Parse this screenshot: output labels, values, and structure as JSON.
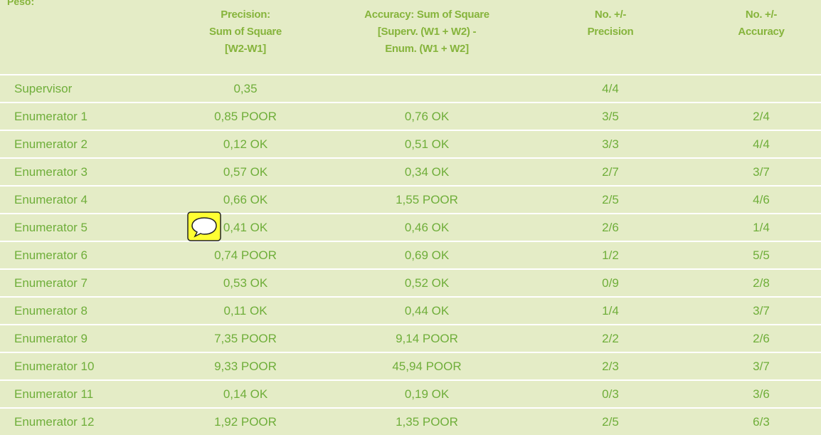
{
  "title": "Peso:",
  "table": {
    "header": [
      [
        "Precision:",
        "Sum of Square",
        "[W2-W1]"
      ],
      [
        "Accuracy:  Sum of Square",
        "[Superv. (W1 + W2) -",
        "Enum. (W1 + W2]"
      ],
      [
        "No. +/-",
        "Precision"
      ],
      [
        "No. +/-",
        "Accuracy"
      ]
    ],
    "rows": [
      [
        "Supervisor",
        "0,35",
        null,
        "4/4",
        null
      ],
      [
        "Enumerator 1",
        "0,85 POOR",
        "0,76 OK",
        "3/5",
        "2/4"
      ],
      [
        "Enumerator 2",
        "0,12 OK",
        "0,51 OK",
        "3/3",
        "4/4"
      ],
      [
        "Enumerator 3",
        "0,57 OK",
        "0,34 OK",
        "2/7",
        "3/7"
      ],
      [
        "Enumerator 4",
        "0,66 OK",
        "1,55 POOR",
        "2/5",
        "4/6"
      ],
      [
        "Enumerator 5",
        "0,41 OK",
        "0,46 OK",
        "2/6",
        "1/4"
      ],
      [
        "Enumerator 6",
        "0,74 POOR",
        "0,69 OK",
        "1/2",
        "5/5"
      ],
      [
        "Enumerator 7",
        "0,53 OK",
        "0,52 OK",
        "0/9",
        "2/8"
      ],
      [
        "Enumerator 8",
        "0,11 OK",
        "0,44 OK",
        "1/4",
        "3/7"
      ],
      [
        "Enumerator 9",
        "7,35 POOR",
        "9,14 POOR",
        "2/2",
        "2/6"
      ],
      [
        "Enumerator 10",
        "9,33 POOR",
        "45,94 POOR",
        "2/3",
        "3/7"
      ],
      [
        "Enumerator 11",
        "0,14 OK",
        "0,19 OK",
        "0/3",
        "3/6"
      ],
      [
        "Enumerator 12",
        "1,92 POOR",
        "1,35 POOR",
        "2/5",
        "6/3"
      ]
    ]
  }
}
